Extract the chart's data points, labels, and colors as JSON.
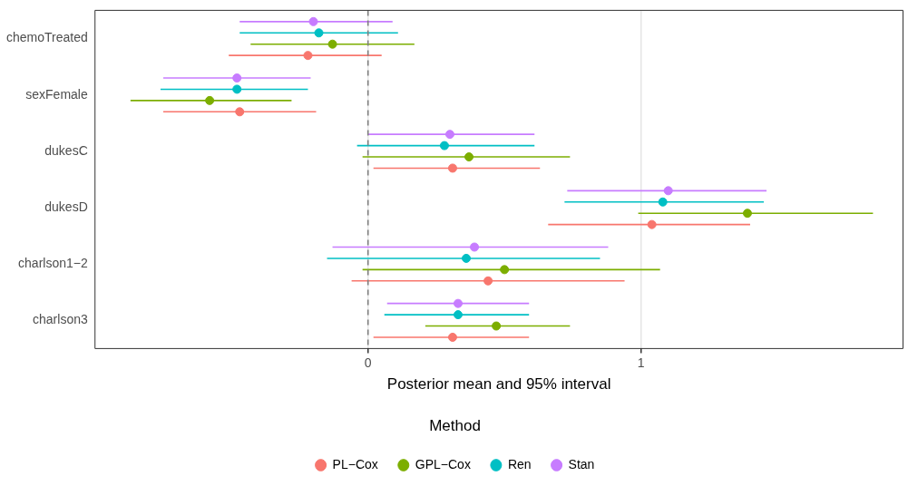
{
  "chart_data": {
    "type": "scatter",
    "orientation": "horizontal",
    "xlabel": "Posterior mean and 95% interval",
    "legend_title": "Method",
    "legend": "bottom",
    "grid": "x",
    "marker": "circle",
    "categories": [
      "chemoTreated",
      "sexFemale",
      "dukesC",
      "dukesD",
      "charlson1−2",
      "charlson3"
    ],
    "xlim": [
      -1.0,
      1.96
    ],
    "xticks": [
      0,
      1
    ],
    "ref_lines": [
      {
        "axis": "x",
        "value": 0,
        "color": "#7f7f7f",
        "line_style": "dashed"
      }
    ],
    "series": [
      {
        "name": "PL−Cox",
        "color": "#f8766d",
        "values": [
          -0.22,
          -0.47,
          0.31,
          1.04,
          0.44,
          0.31
        ],
        "errors": [
          [
            -0.51,
            0.05
          ],
          [
            -0.75,
            -0.19
          ],
          [
            0.02,
            0.63
          ],
          [
            0.66,
            1.4
          ],
          [
            -0.06,
            0.94
          ],
          [
            0.02,
            0.59
          ]
        ]
      },
      {
        "name": "GPL−Cox",
        "color": "#7cae00",
        "values": [
          -0.13,
          -0.58,
          0.37,
          1.39,
          0.5,
          0.47
        ],
        "errors": [
          [
            -0.43,
            0.17
          ],
          [
            -0.87,
            -0.28
          ],
          [
            -0.02,
            0.74
          ],
          [
            0.99,
            1.85
          ],
          [
            -0.02,
            1.07
          ],
          [
            0.21,
            0.74
          ]
        ]
      },
      {
        "name": "Ren",
        "color": "#00bfc4",
        "values": [
          -0.18,
          -0.48,
          0.28,
          1.08,
          0.36,
          0.33
        ],
        "errors": [
          [
            -0.47,
            0.11
          ],
          [
            -0.76,
            -0.22
          ],
          [
            -0.04,
            0.61
          ],
          [
            0.72,
            1.45
          ],
          [
            -0.15,
            0.85
          ],
          [
            0.06,
            0.59
          ]
        ]
      },
      {
        "name": "Stan",
        "color": "#c77cff",
        "values": [
          -0.2,
          -0.48,
          0.3,
          1.1,
          0.39,
          0.33
        ],
        "errors": [
          [
            -0.47,
            0.09
          ],
          [
            -0.75,
            -0.21
          ],
          [
            0.0,
            0.61
          ],
          [
            0.73,
            1.46
          ],
          [
            -0.13,
            0.88
          ],
          [
            0.07,
            0.59
          ]
        ]
      }
    ]
  }
}
